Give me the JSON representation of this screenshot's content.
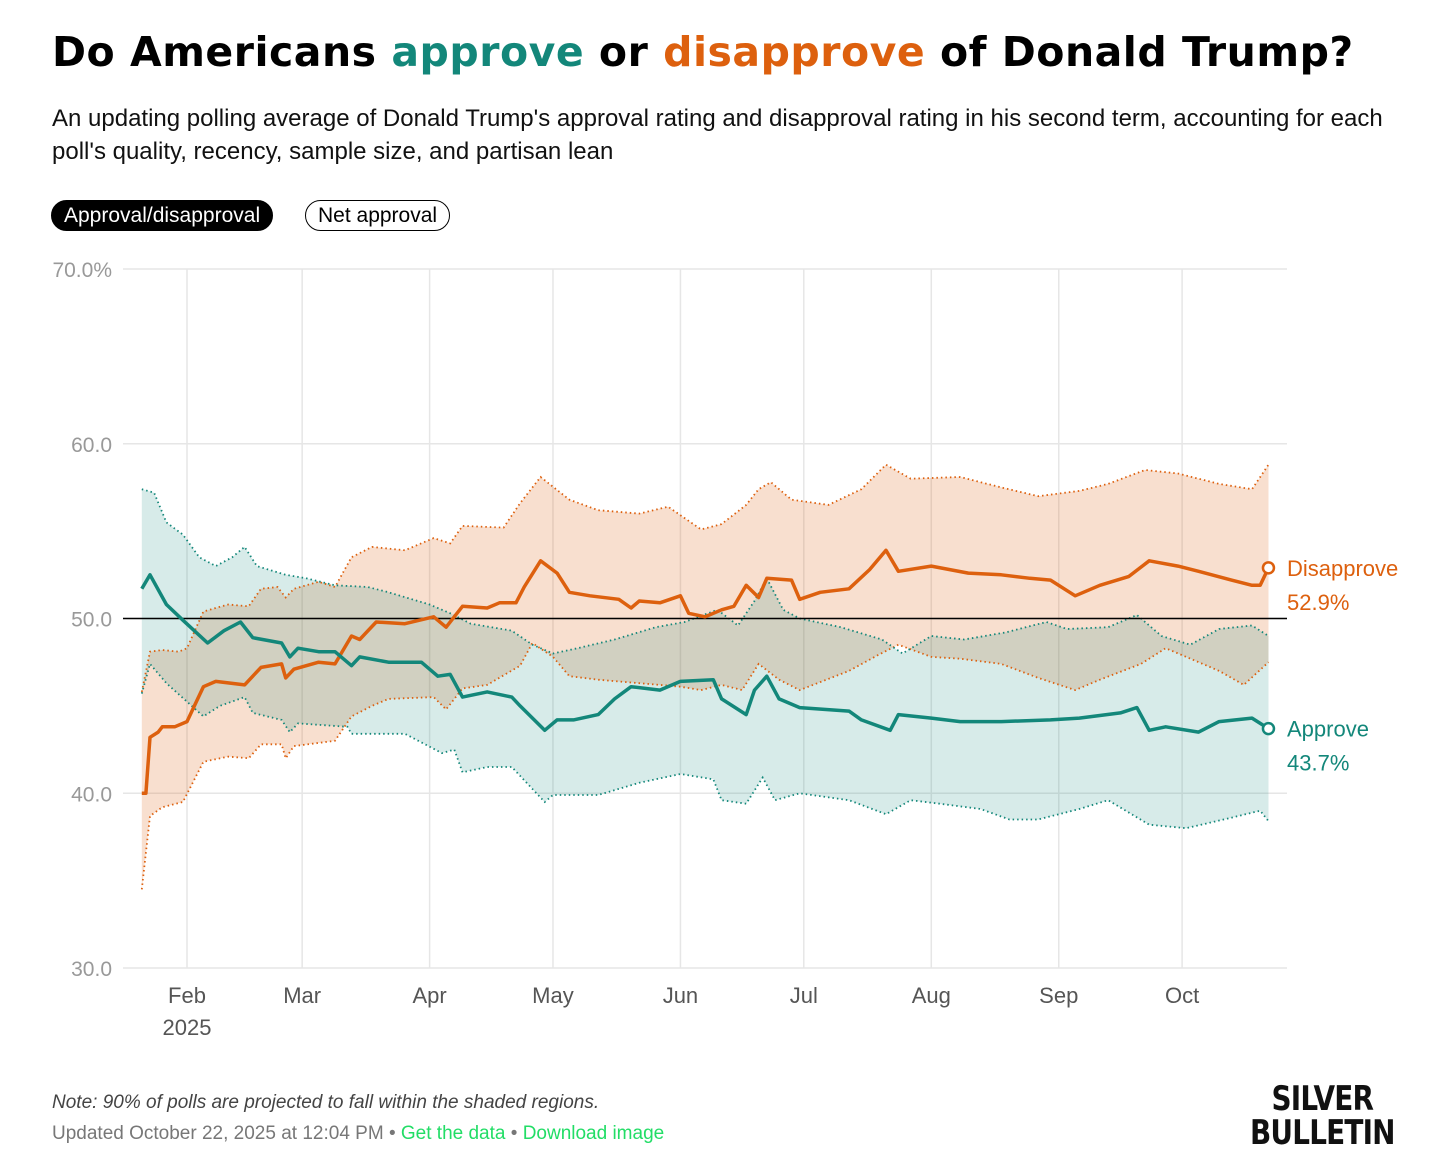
{
  "header": {
    "title_prefix": "Do Americans ",
    "title_approve": "approve",
    "title_or": " or ",
    "title_disapprove": "disapprove",
    "title_suffix": " of Donald Trump?",
    "subtitle": "An updating polling average of Donald Trump's approval rating and disapproval rating in his second term, accounting for each poll's quality, recency, sample size, and partisan lean"
  },
  "toggles": {
    "approval_disapproval": "Approval/disapproval",
    "net_approval": "Net approval"
  },
  "colors": {
    "approve": "#13877a",
    "disapprove": "#dd600e",
    "link": "#22dd66"
  },
  "chart_data": {
    "type": "line",
    "title": "Do Americans approve or disapprove of Donald Trump?",
    "x_unit": "day of year 2025",
    "xlim": [
      19,
      294
    ],
    "ylim": [
      30,
      70
    ],
    "y_ticks": [
      {
        "v": 70,
        "label": "70.0%"
      },
      {
        "v": 60,
        "label": "60.0"
      },
      {
        "v": 50,
        "label": "50.0"
      },
      {
        "v": 40,
        "label": "40.0"
      },
      {
        "v": 30,
        "label": "30.0"
      }
    ],
    "x_ticks": [
      {
        "d": 31,
        "label": "Feb"
      },
      {
        "d": 59,
        "label": "Mar"
      },
      {
        "d": 90,
        "label": "Apr"
      },
      {
        "d": 120,
        "label": "May"
      },
      {
        "d": 151,
        "label": "Jun"
      },
      {
        "d": 181,
        "label": "Jul"
      },
      {
        "d": 212,
        "label": "Aug"
      },
      {
        "d": 243,
        "label": "Sep"
      },
      {
        "d": 273,
        "label": "Oct"
      }
    ],
    "year_label": "2025",
    "reference_line": 50,
    "shading_note": "90% of polls projected within shaded regions",
    "series": [
      {
        "name": "Disapprove",
        "key": "disapprove",
        "final_label": "52.9%",
        "x": [
          20,
          21,
          22,
          24,
          25,
          28,
          31,
          33,
          35,
          38,
          45,
          49,
          54,
          55,
          57,
          63,
          67,
          71,
          73,
          77,
          84,
          91,
          94,
          98,
          104,
          107,
          111,
          113,
          117,
          121,
          124,
          129,
          136,
          139,
          141,
          146,
          151,
          153,
          157,
          161,
          164,
          167,
          170,
          172,
          178,
          180,
          185,
          192,
          197,
          201,
          204,
          212,
          221,
          229,
          236,
          241,
          247,
          253,
          260,
          265,
          272,
          277,
          285,
          290,
          292,
          294
        ],
        "values": [
          40.0,
          40.0,
          43.2,
          43.5,
          43.8,
          43.8,
          44.1,
          45.1,
          46.1,
          46.4,
          46.2,
          47.2,
          47.4,
          46.6,
          47.1,
          47.5,
          47.4,
          49.0,
          48.8,
          49.8,
          49.7,
          50.1,
          49.5,
          50.7,
          50.6,
          50.9,
          50.9,
          51.8,
          53.3,
          52.6,
          51.5,
          51.3,
          51.1,
          50.6,
          51.0,
          50.9,
          51.3,
          50.3,
          50.1,
          50.5,
          50.7,
          51.9,
          51.2,
          52.3,
          52.2,
          51.1,
          51.5,
          51.7,
          52.8,
          53.9,
          52.7,
          53.0,
          52.6,
          52.5,
          52.3,
          52.2,
          51.3,
          51.9,
          52.4,
          53.3,
          53.0,
          52.7,
          52.2,
          51.9,
          51.9,
          52.9
        ],
        "upper": {
          "x": [
            20,
            22,
            25,
            29,
            31,
            35,
            41,
            46,
            49,
            53,
            55,
            57,
            63,
            67,
            71,
            76,
            84,
            91,
            95,
            98,
            108,
            112,
            117,
            124,
            131,
            141,
            148,
            156,
            161,
            167,
            170,
            173,
            178,
            187,
            195,
            201,
            207,
            219,
            229,
            238,
            248,
            255,
            264,
            272,
            282,
            290,
            294
          ],
          "values": [
            45.8,
            48.1,
            48.2,
            48.1,
            48.3,
            50.4,
            50.8,
            50.7,
            51.7,
            51.8,
            51.2,
            51.7,
            52.1,
            51.8,
            53.5,
            54.1,
            53.9,
            54.6,
            54.3,
            55.3,
            55.2,
            56.6,
            58.1,
            56.8,
            56.2,
            56.0,
            56.4,
            55.1,
            55.4,
            56.5,
            57.4,
            57.8,
            56.8,
            56.5,
            57.4,
            58.8,
            58.0,
            58.1,
            57.5,
            57.0,
            57.3,
            57.7,
            58.5,
            58.3,
            57.7,
            57.4,
            58.8
          ]
        },
        "lower": {
          "x": [
            20,
            22,
            25,
            30,
            35,
            41,
            46,
            49,
            54,
            55,
            57,
            67,
            71,
            76,
            80,
            91,
            94,
            98,
            104,
            112,
            115,
            120,
            124,
            131,
            141,
            151,
            156,
            161,
            166,
            170,
            175,
            180,
            192,
            199,
            204,
            212,
            219,
            229,
            238,
            247,
            253,
            263,
            269,
            274,
            282,
            288,
            294
          ],
          "values": [
            34.5,
            38.7,
            39.2,
            39.5,
            41.8,
            42.1,
            42.0,
            42.8,
            42.8,
            42.0,
            42.7,
            43.0,
            44.4,
            45.0,
            45.4,
            45.5,
            44.8,
            46.0,
            46.2,
            47.3,
            48.6,
            47.8,
            46.7,
            46.5,
            46.3,
            46.1,
            45.9,
            46.2,
            45.9,
            47.4,
            46.5,
            45.9,
            47.0,
            47.9,
            48.5,
            47.8,
            47.7,
            47.4,
            46.6,
            45.9,
            46.5,
            47.4,
            48.3,
            47.8,
            47.0,
            46.2,
            47.5
          ]
        }
      },
      {
        "name": "Approve",
        "key": "approve",
        "final_label": "43.7%",
        "x": [
          20,
          22,
          26,
          30,
          36,
          40,
          44,
          47,
          54,
          56,
          58,
          63,
          67,
          71,
          73,
          80,
          88,
          92,
          95,
          98,
          104,
          110,
          112,
          118,
          121,
          125,
          131,
          135,
          139,
          146,
          151,
          159,
          161,
          167,
          169,
          172,
          175,
          180,
          192,
          195,
          202,
          204,
          212,
          219,
          229,
          241,
          248,
          258,
          262,
          265,
          269,
          277,
          282,
          290,
          294
        ],
        "values": [
          51.7,
          52.5,
          50.8,
          49.9,
          48.6,
          49.3,
          49.8,
          48.9,
          48.6,
          47.8,
          48.3,
          48.1,
          48.1,
          47.3,
          47.8,
          47.5,
          47.5,
          46.7,
          46.8,
          45.5,
          45.8,
          45.5,
          45.0,
          43.6,
          44.2,
          44.2,
          44.5,
          45.4,
          46.1,
          45.9,
          46.4,
          46.5,
          45.4,
          44.5,
          45.9,
          46.7,
          45.4,
          44.9,
          44.7,
          44.2,
          43.6,
          44.5,
          44.3,
          44.1,
          44.1,
          44.2,
          44.3,
          44.6,
          44.9,
          43.6,
          43.8,
          43.5,
          44.1,
          44.3,
          43.7
        ],
        "upper": {
          "x": [
            20,
            23,
            26,
            30,
            34,
            38,
            42,
            45,
            48,
            55,
            60,
            67,
            75,
            80,
            90,
            95,
            100,
            105,
            110,
            115,
            120,
            126,
            135,
            145,
            152,
            160,
            165,
            169,
            172,
            176,
            180,
            190,
            200,
            205,
            212,
            220,
            230,
            240,
            245,
            255,
            262,
            268,
            275,
            282,
            290,
            294
          ],
          "values": [
            57.4,
            57.2,
            55.5,
            54.8,
            53.5,
            53.0,
            53.5,
            54.1,
            53.0,
            52.5,
            52.3,
            51.9,
            51.8,
            51.5,
            50.8,
            50.3,
            49.7,
            49.5,
            49.3,
            48.5,
            48.0,
            48.3,
            48.8,
            49.5,
            49.8,
            50.5,
            49.6,
            51.0,
            52.3,
            50.5,
            50.0,
            49.5,
            48.8,
            48.0,
            49.0,
            48.8,
            49.2,
            49.8,
            49.4,
            49.5,
            50.2,
            49.0,
            48.5,
            49.4,
            49.6,
            49.0
          ]
        },
        "lower": {
          "x": [
            20,
            22,
            26,
            35,
            39,
            45,
            47,
            54,
            56,
            58,
            70,
            71,
            84,
            93,
            96,
            98,
            104,
            110,
            118,
            120,
            131,
            141,
            151,
            159,
            161,
            167,
            171,
            174,
            180,
            192,
            201,
            207,
            214,
            224,
            231,
            238,
            248,
            255,
            265,
            274,
            285,
            292,
            294
          ],
          "values": [
            45.7,
            47.4,
            46.3,
            44.4,
            45.0,
            45.5,
            44.6,
            44.2,
            43.5,
            44.0,
            43.8,
            43.4,
            43.4,
            42.3,
            42.5,
            41.2,
            41.5,
            41.5,
            39.5,
            39.9,
            39.9,
            40.6,
            41.1,
            40.8,
            39.6,
            39.4,
            40.9,
            39.6,
            40.0,
            39.6,
            38.8,
            39.6,
            39.4,
            39.1,
            38.5,
            38.5,
            39.1,
            39.6,
            38.2,
            38.0,
            38.6,
            39.0,
            38.4
          ]
        }
      }
    ]
  },
  "footer": {
    "note": "Note: 90% of polls are projected to fall within the shaded regions.",
    "updated": "Updated October 22, 2025 at 12:04 PM",
    "separator": " • ",
    "get_data": "Get the data",
    "download_image": "Download image",
    "logo_line1": "SILVER",
    "logo_line2": "BULLETIN"
  }
}
